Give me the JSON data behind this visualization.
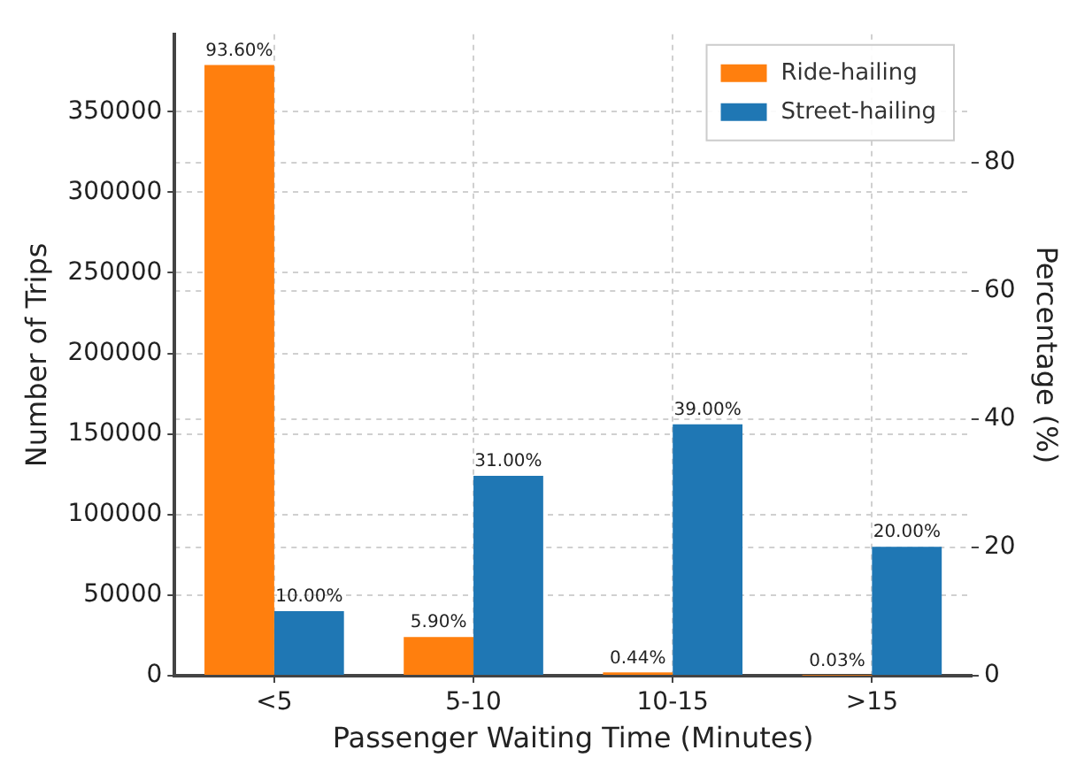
{
  "chart_data": {
    "type": "bar",
    "xlabel": "Passenger Waiting Time (Minutes)",
    "ylabel": "Number of Trips",
    "y2label": "Percentage (%)",
    "categories": [
      "<5",
      "5-10",
      "10-15",
      ">15"
    ],
    "series": [
      {
        "name": "Ride-hailing",
        "color": "#ff7f0e",
        "values": [
          379000,
          24000,
          2000,
          100
        ]
      },
      {
        "name": "Street-hailing",
        "color": "#1f77b4",
        "values": [
          40000,
          124000,
          156000,
          80000
        ]
      }
    ],
    "annotations": [
      {
        "text": "93.60%",
        "x": "<5",
        "y": 379000
      },
      {
        "text": "5.90%",
        "x": "5-10",
        "y": 24000
      },
      {
        "text": "0.44%",
        "x": "10-15",
        "y": 2000
      },
      {
        "text": "0.03%",
        "x": ">15",
        "y": 100
      },
      {
        "text": "10.00%",
        "x": "<5",
        "y": 40000
      },
      {
        "text": "31.00%",
        "x": "5-10",
        "y": 124000
      },
      {
        "text": "39.00%",
        "x": "10-15",
        "y": 156000
      },
      {
        "text": "20.00%",
        "x": ">15",
        "y": 80000
      }
    ],
    "ylim": [
      0,
      398000
    ],
    "yticks": [
      0,
      50000,
      100000,
      150000,
      200000,
      250000,
      300000,
      350000
    ],
    "y2lim": [
      0,
      100
    ],
    "y2ticks": [
      0,
      20,
      40,
      60,
      80
    ],
    "grid": true,
    "legend": "top right"
  }
}
